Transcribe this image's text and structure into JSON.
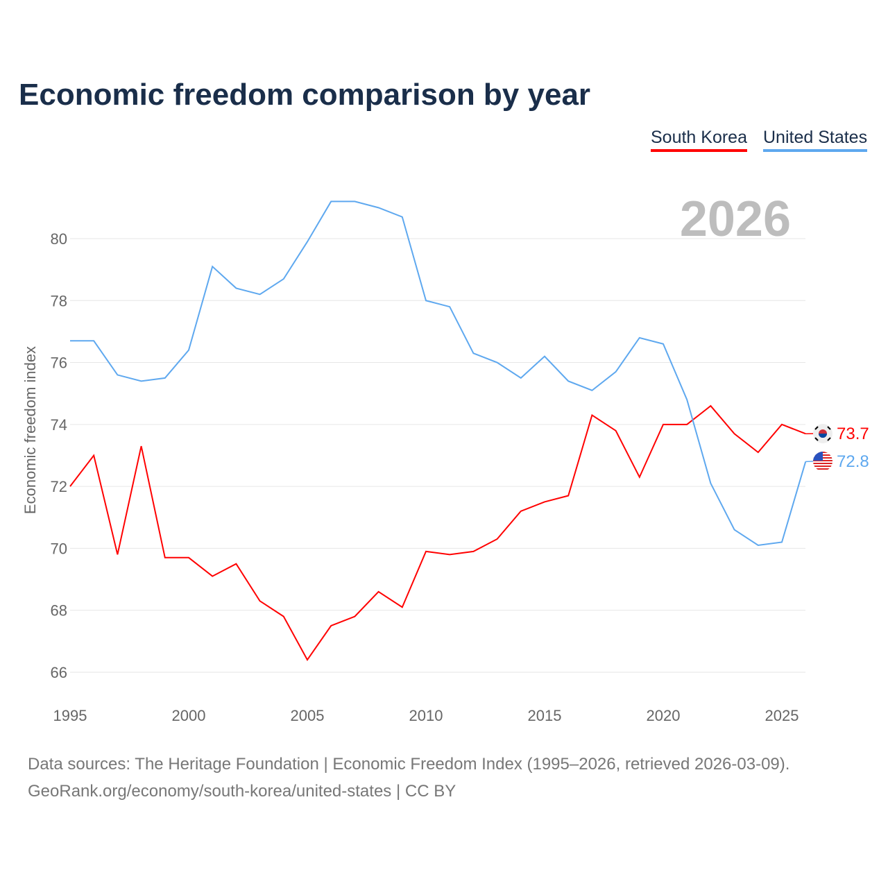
{
  "chart_data": {
    "type": "line",
    "title": "Economic freedom comparison by year",
    "ylabel": "Economic freedom index",
    "xlabel": "",
    "xlim": [
      1995,
      2026
    ],
    "ylim": [
      65,
      82
    ],
    "x_ticks": [
      1995,
      2000,
      2005,
      2010,
      2015,
      2020,
      2025
    ],
    "y_ticks": [
      66,
      68,
      70,
      72,
      74,
      76,
      78,
      80
    ],
    "current_year_label": "2026",
    "legend_position": "top-right",
    "x": [
      1995,
      1996,
      1997,
      1998,
      1999,
      2000,
      2001,
      2002,
      2003,
      2004,
      2005,
      2006,
      2007,
      2008,
      2009,
      2010,
      2011,
      2012,
      2013,
      2014,
      2015,
      2016,
      2017,
      2018,
      2019,
      2020,
      2021,
      2022,
      2023,
      2024,
      2025,
      2026
    ],
    "series": [
      {
        "name": "South Korea",
        "color": "#ff0000",
        "end_label": "73.7",
        "values": [
          72.0,
          73.0,
          69.8,
          73.3,
          69.7,
          69.7,
          69.1,
          69.5,
          68.3,
          67.8,
          66.4,
          67.5,
          67.8,
          68.6,
          68.1,
          69.9,
          69.8,
          69.9,
          70.3,
          71.2,
          71.5,
          71.7,
          74.3,
          73.8,
          72.3,
          74.0,
          74.0,
          74.6,
          73.7,
          73.1,
          74.0,
          73.7
        ]
      },
      {
        "name": "United States",
        "color": "#5ea8ef",
        "end_label": "72.8",
        "values": [
          76.7,
          76.7,
          75.6,
          75.4,
          75.5,
          76.4,
          79.1,
          78.4,
          78.2,
          78.7,
          79.9,
          81.2,
          81.2,
          81.0,
          80.7,
          78.0,
          77.8,
          76.3,
          76.0,
          75.5,
          76.2,
          75.4,
          75.1,
          75.7,
          76.8,
          76.6,
          74.8,
          72.1,
          70.6,
          70.1,
          70.2,
          72.8
        ]
      }
    ]
  },
  "source_line1": "Data sources: The Heritage Foundation | Economic Freedom Index (1995–2026, retrieved 2026-03-09).",
  "source_line2": "GeoRank.org/economy/south-korea/united-states | CC BY"
}
